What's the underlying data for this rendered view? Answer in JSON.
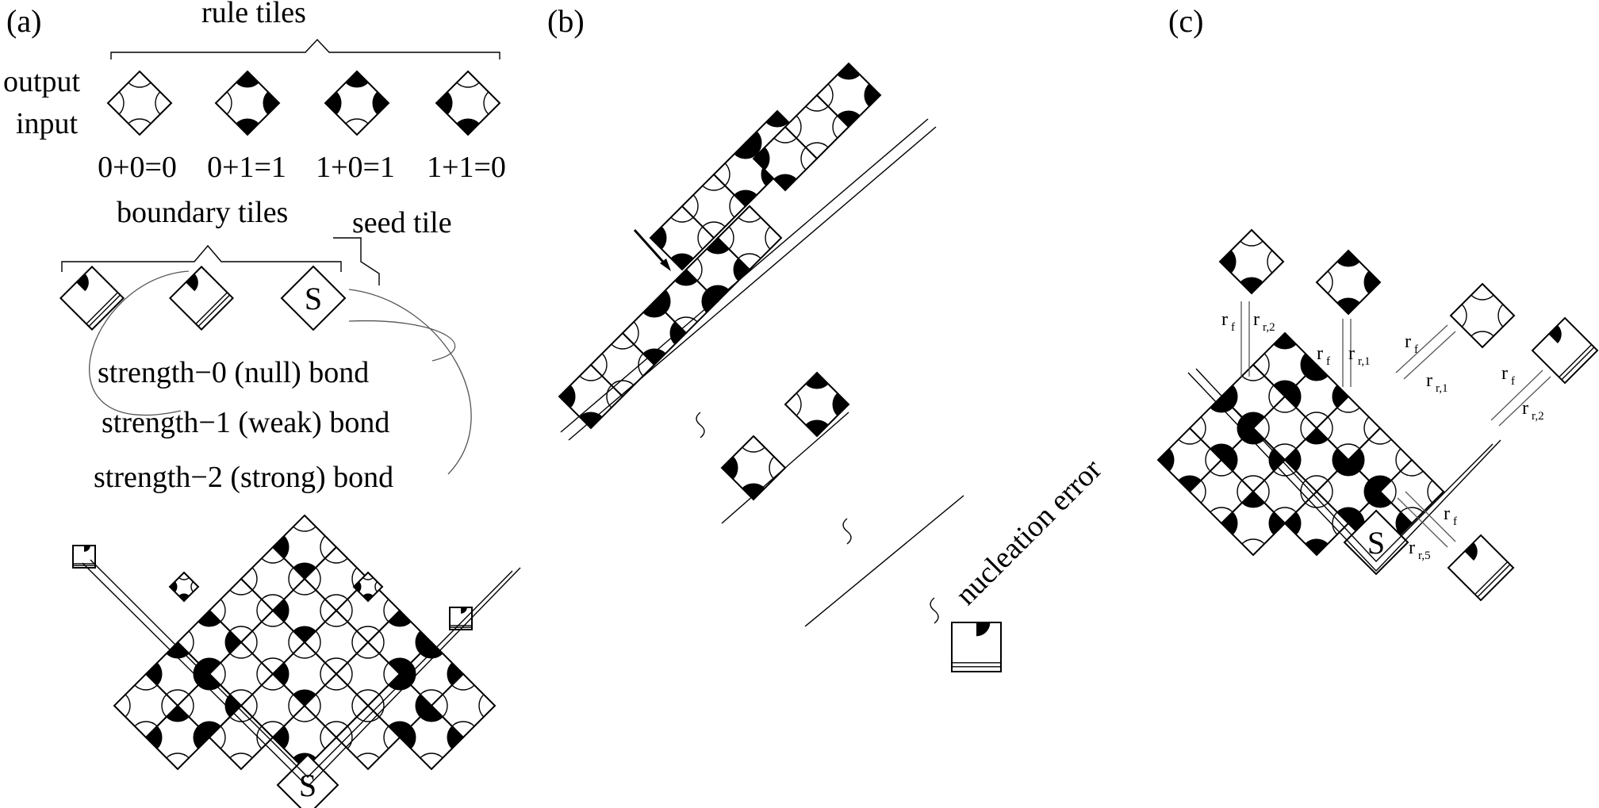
{
  "panels": {
    "a": "(a)",
    "b": "(b)",
    "c": "(c)"
  },
  "panel_a": {
    "rule_tiles_label": "rule tiles",
    "output_label": "output",
    "input_label": "input",
    "rules": [
      "0+0=0",
      "0+1=1",
      "1+0=1",
      "1+1=0"
    ],
    "boundary_tiles_label": "boundary tiles",
    "seed_tile_label": "seed tile",
    "seed_letter": "S",
    "bond_null": "strength−0 (null) bond",
    "bond_weak": "strength−1 (weak) bond",
    "bond_strong": "strength−2 (strong) bond"
  },
  "panel_b": {
    "nucleation_error": "nucleation error"
  },
  "panel_c": {
    "seed_letter": "S",
    "r_main": "r",
    "sub_f": "f",
    "sub_r2": "r,2",
    "sub_r1": "r,1",
    "sub_r5": "r,5"
  }
}
